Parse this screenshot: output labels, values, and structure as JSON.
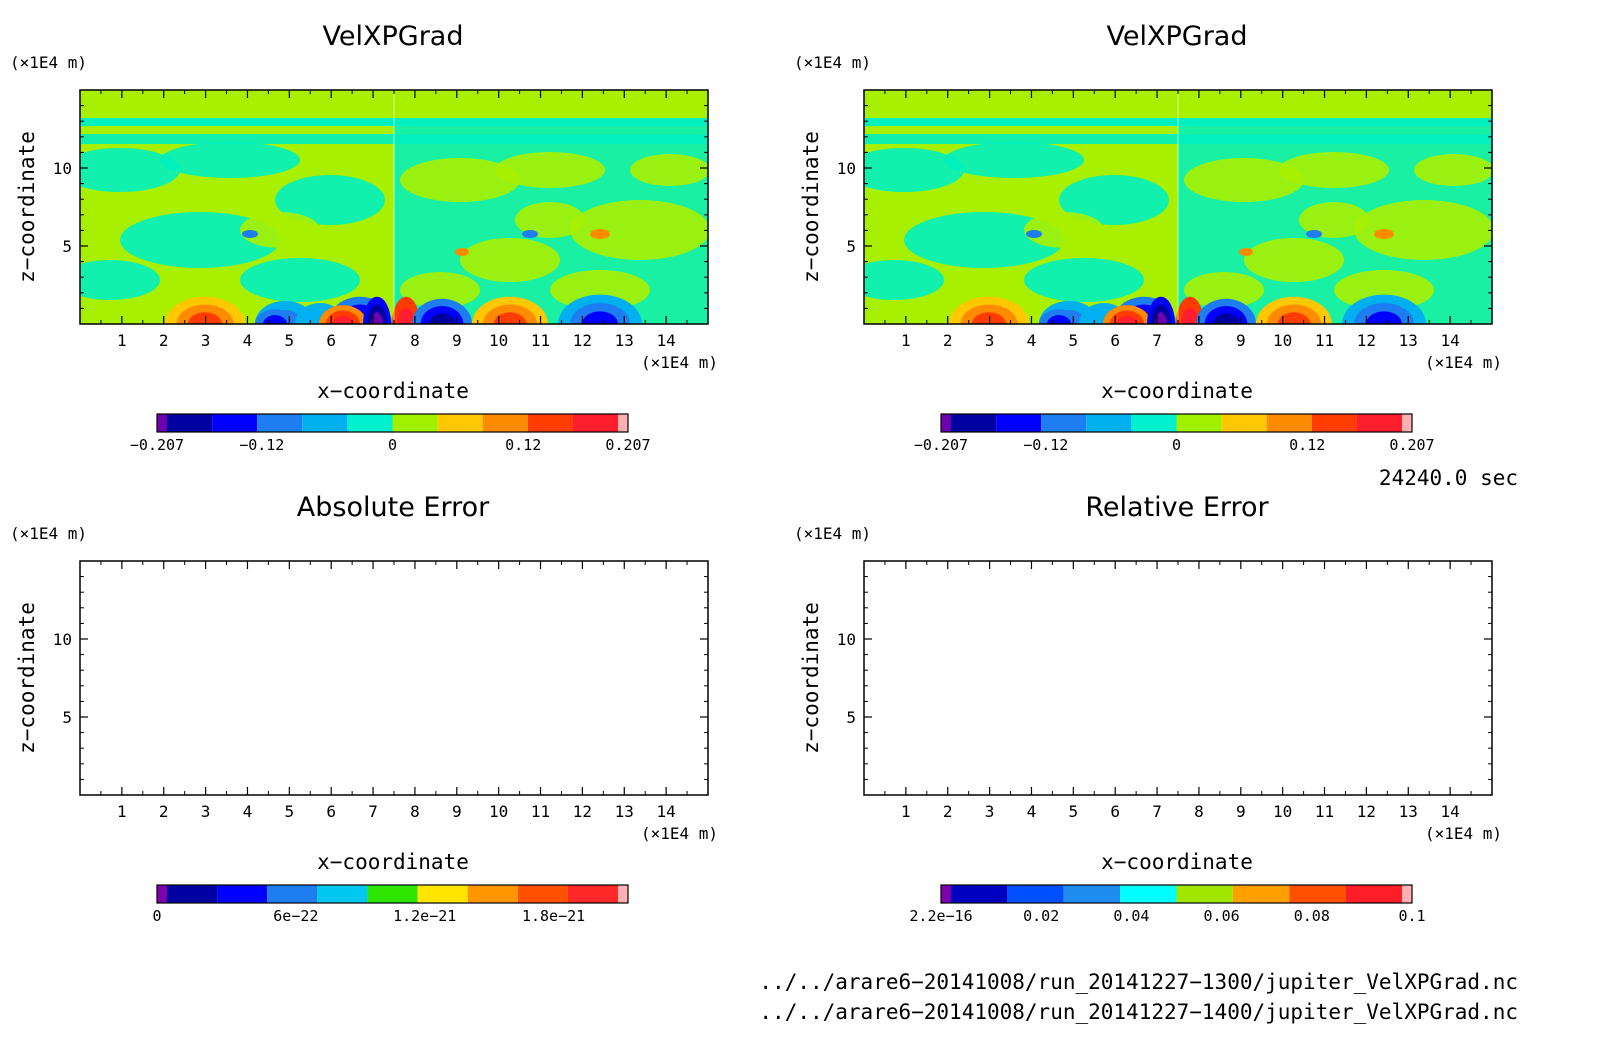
{
  "chart_data": [
    {
      "type": "heatmap",
      "title": "VelXPGrad",
      "xlabel": "x−coordinate",
      "ylabel": "z−coordinate",
      "x_unit": "(×1E4 m)",
      "y_unit": "(×1E4 m)",
      "xlim": [
        0,
        15
      ],
      "ylim": [
        0,
        15
      ],
      "x_ticks": [
        "1",
        "2",
        "3",
        "4",
        "5",
        "6",
        "7",
        "8",
        "9",
        "10",
        "11",
        "12",
        "13",
        "14"
      ],
      "y_ticks": [
        "5",
        "10"
      ],
      "colorbar": {
        "labels": [
          "−0.207",
          "−0.12",
          "0",
          "0.12",
          "0.207"
        ],
        "range": [
          -0.207,
          0.207
        ],
        "colors": [
          "#7000b0",
          "#0000a0",
          "#0000ff",
          "#1e7df0",
          "#00b0f0",
          "#00f0d0",
          "#a0f000",
          "#ffc800",
          "#ff8c00",
          "#ff3c00",
          "#ff1e2e",
          "#ffb0b0"
        ]
      },
      "panel": "top-left"
    },
    {
      "type": "heatmap",
      "title": "VelXPGrad",
      "xlabel": "x−coordinate",
      "ylabel": "z−coordinate",
      "x_unit": "(×1E4 m)",
      "y_unit": "(×1E4 m)",
      "xlim": [
        0,
        15
      ],
      "ylim": [
        0,
        15
      ],
      "x_ticks": [
        "1",
        "2",
        "3",
        "4",
        "5",
        "6",
        "7",
        "8",
        "9",
        "10",
        "11",
        "12",
        "13",
        "14"
      ],
      "y_ticks": [
        "5",
        "10"
      ],
      "colorbar": {
        "labels": [
          "−0.207",
          "−0.12",
          "0",
          "0.12",
          "0.207"
        ],
        "range": [
          -0.207,
          0.207
        ],
        "colors": [
          "#7000b0",
          "#0000a0",
          "#0000ff",
          "#1e7df0",
          "#00b0f0",
          "#00f0d0",
          "#a0f000",
          "#ffc800",
          "#ff8c00",
          "#ff3c00",
          "#ff1e2e",
          "#ffb0b0"
        ]
      },
      "panel": "top-right"
    },
    {
      "type": "heatmap",
      "title": "Absolute Error",
      "xlabel": "x−coordinate",
      "ylabel": "z−coordinate",
      "x_unit": "(×1E4 m)",
      "y_unit": "(×1E4 m)",
      "xlim": [
        0,
        15
      ],
      "ylim": [
        0,
        15
      ],
      "x_ticks": [
        "1",
        "2",
        "3",
        "4",
        "5",
        "6",
        "7",
        "8",
        "9",
        "10",
        "11",
        "12",
        "13",
        "14"
      ],
      "y_ticks": [
        "5",
        "10"
      ],
      "colorbar": {
        "labels": [
          "0",
          "6e−22",
          "1.2e−21",
          "1.8e−21"
        ],
        "range": [
          0,
          2.1e-21
        ],
        "colors": [
          "#8000b0",
          "#0000a0",
          "#0000ff",
          "#1e7df0",
          "#00c8f0",
          "#2ee600",
          "#ffe600",
          "#ff9600",
          "#ff5000",
          "#ff2828",
          "#ffb0b0"
        ]
      },
      "panel": "bottom-left"
    },
    {
      "type": "heatmap",
      "title": "Relative Error",
      "xlabel": "x−coordinate",
      "ylabel": "z−coordinate",
      "x_unit": "(×1E4 m)",
      "y_unit": "(×1E4 m)",
      "xlim": [
        0,
        15
      ],
      "ylim": [
        0,
        15
      ],
      "x_ticks": [
        "1",
        "2",
        "3",
        "4",
        "5",
        "6",
        "7",
        "8",
        "9",
        "10",
        "11",
        "12",
        "13",
        "14"
      ],
      "y_ticks": [
        "5",
        "10"
      ],
      "colorbar": {
        "labels": [
          "2.2e−16",
          "0.02",
          "0.04",
          "0.06",
          "0.08",
          "0.1"
        ],
        "range": [
          0,
          0.1
        ],
        "colors": [
          "#8000b0",
          "#0000c0",
          "#0050ff",
          "#1e8cf0",
          "#00ffff",
          "#a0e600",
          "#ffa000",
          "#ff5000",
          "#ff1e28",
          "#ffb0b0"
        ]
      },
      "panel": "bottom-right"
    }
  ],
  "time_label": "24240.0 sec",
  "file_paths": [
    "../../arare6−20141008/run_20141227−1300/jupiter_VelXPGrad.nc",
    "../../arare6−20141008/run_20141227−1400/jupiter_VelXPGrad.nc"
  ],
  "field_colors": {
    "background_a": "#a8f000",
    "background_b": "#00f0c0"
  }
}
